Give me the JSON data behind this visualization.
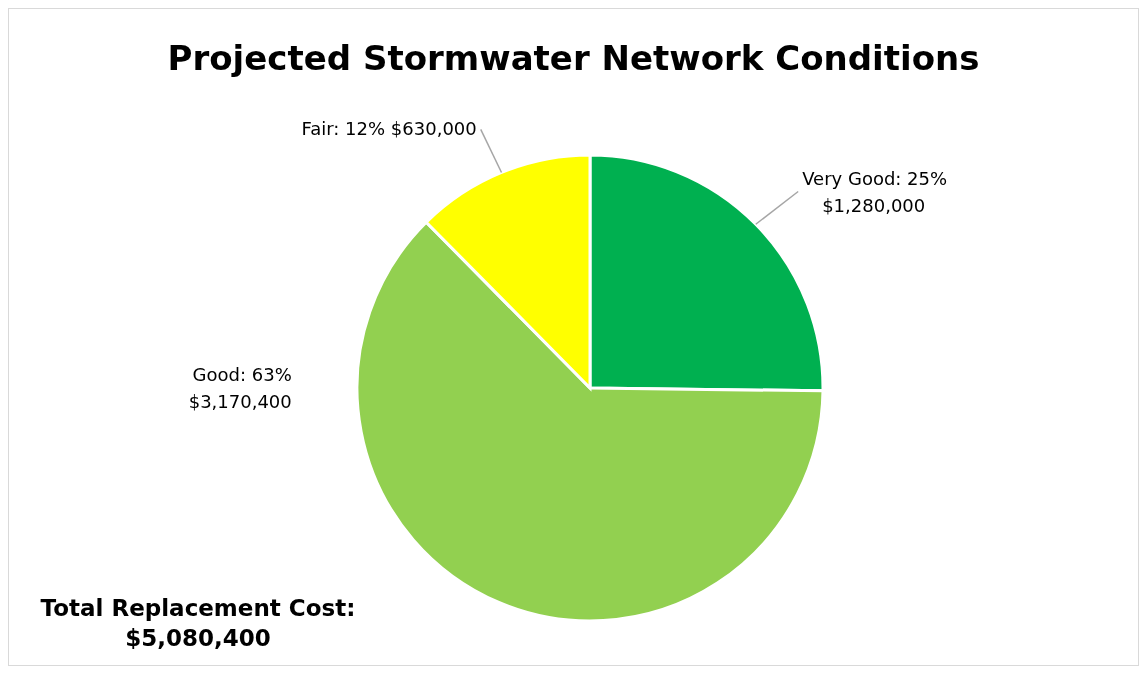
{
  "chart_data": {
    "type": "pie",
    "title": "Projected Stormwater Network Conditions",
    "categories": [
      "Very Good",
      "Good",
      "Fair"
    ],
    "values": [
      1280000,
      3170400,
      630000
    ],
    "colors": [
      "#00b050",
      "#92d050",
      "#ffff00"
    ],
    "value_labels": [
      "25%\n$1,280,000",
      "63%\n$3,170,400",
      "12% $630,000"
    ],
    "annotations": [
      "Total Replacement Cost:\n$5,080,400"
    ]
  }
}
